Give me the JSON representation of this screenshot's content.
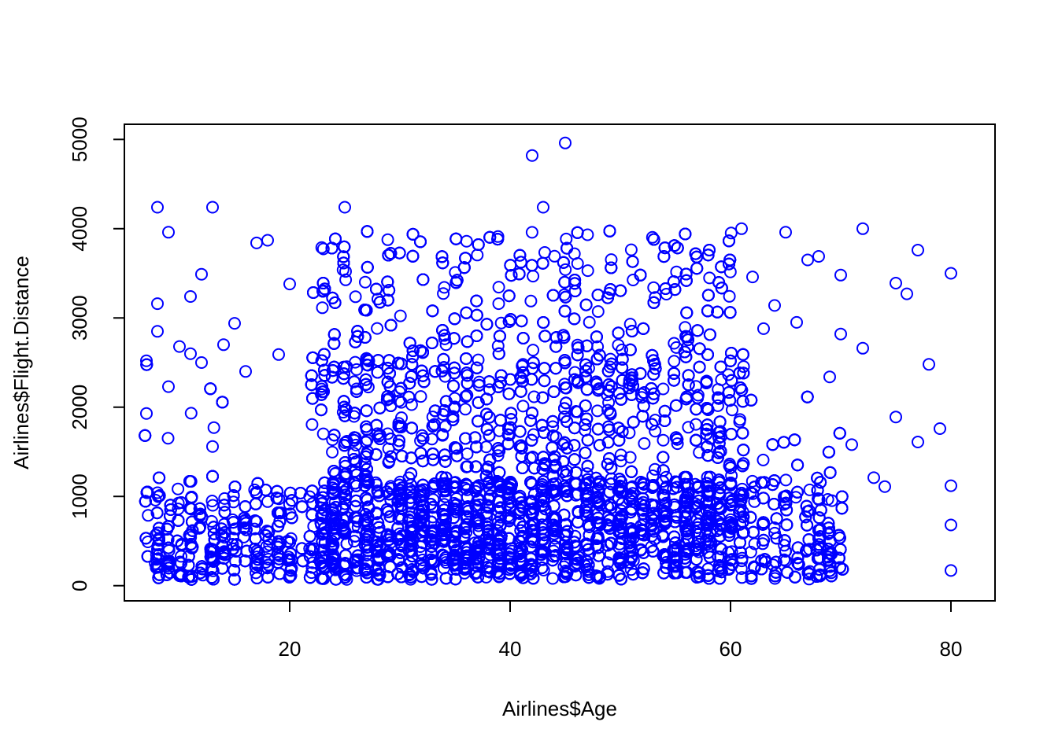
{
  "chart_data": {
    "type": "scatter",
    "title": "",
    "xlabel": "Airlines$Age",
    "ylabel": "Airlines$Flight.Distance",
    "xlim": [
      5,
      84
    ],
    "ylim": [
      -170,
      5170
    ],
    "xticks": [
      20,
      40,
      60,
      80
    ],
    "yticks": [
      0,
      1000,
      2000,
      3000,
      4000,
      5000
    ],
    "grid": false,
    "legend": "none",
    "marker": "open-circle",
    "point_color": "#0000ff",
    "dense_region": {
      "age_range": [
        7,
        85
      ],
      "main_age_range": [
        22,
        61
      ],
      "typical_distance_range": [
        67,
        4000
      ]
    },
    "series": [
      {
        "x": [
          45,
          42,
          43,
          25,
          13,
          8,
          9,
          72,
          65,
          77,
          61,
          18,
          17,
          11,
          12,
          80,
          70,
          75,
          76,
          78,
          67,
          69,
          73,
          74,
          79,
          71,
          62,
          63,
          64,
          66,
          68,
          72,
          75,
          80,
          80,
          80,
          77,
          70,
          10,
          14,
          16,
          19,
          8,
          8,
          9,
          12,
          15,
          20,
          7,
          7,
          11,
          13
        ],
        "y": [
          4960,
          4820,
          4240,
          4240,
          4240,
          4240,
          3960,
          4000,
          3960,
          3760,
          4000,
          3870,
          3840,
          3240,
          3490,
          3500,
          3480,
          3390,
          3270,
          2480,
          3650,
          2340,
          1210,
          1110,
          1760,
          1580,
          3460,
          2880,
          3140,
          2950,
          3690,
          2660,
          1890,
          1120,
          680,
          170,
          1610,
          2820,
          2680,
          2700,
          2400,
          2590,
          3160,
          2850,
          2230,
          2500,
          2940,
          3380,
          2520,
          1930,
          2600,
          1560
        ]
      }
    ]
  }
}
